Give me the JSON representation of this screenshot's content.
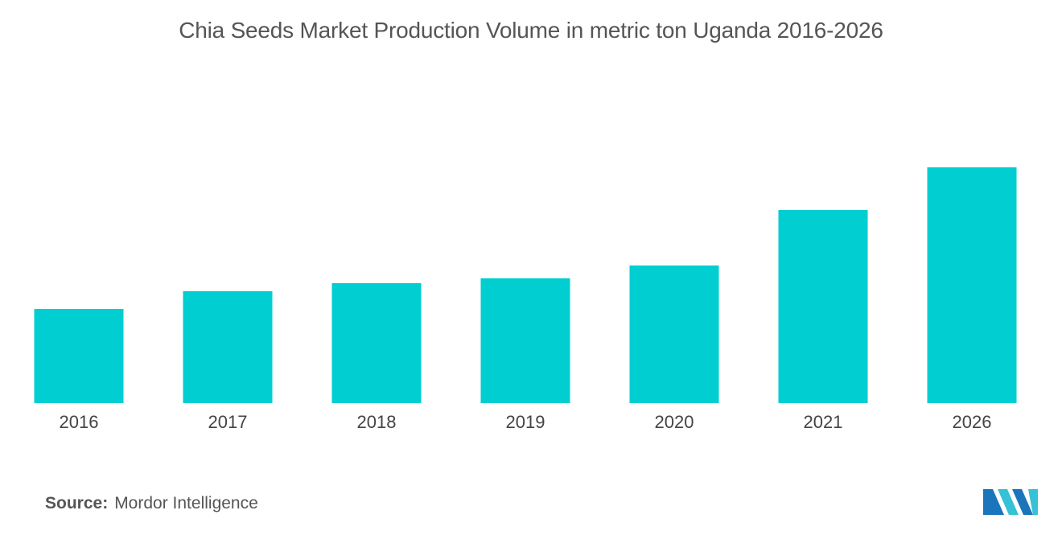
{
  "chart_data": {
    "type": "bar",
    "title": "Chia Seeds Market Production Volume in metric ton Uganda 2016-2026",
    "categories": [
      "2016",
      "2017",
      "2018",
      "2019",
      "2020",
      "2021",
      "2026"
    ],
    "values": [
      117,
      139,
      149,
      155,
      171,
      240,
      293
    ],
    "ylim": [
      0,
      330
    ],
    "xlabel": "",
    "ylabel": "",
    "grid": false,
    "bar_color": "#00CED1"
  },
  "source": {
    "label": "Source:",
    "text": "Mordor Intelligence"
  },
  "logo": {
    "icon": "mordor-intelligence-logo-icon",
    "color_dark": "#1B75BB",
    "color_light": "#35C1D6"
  }
}
